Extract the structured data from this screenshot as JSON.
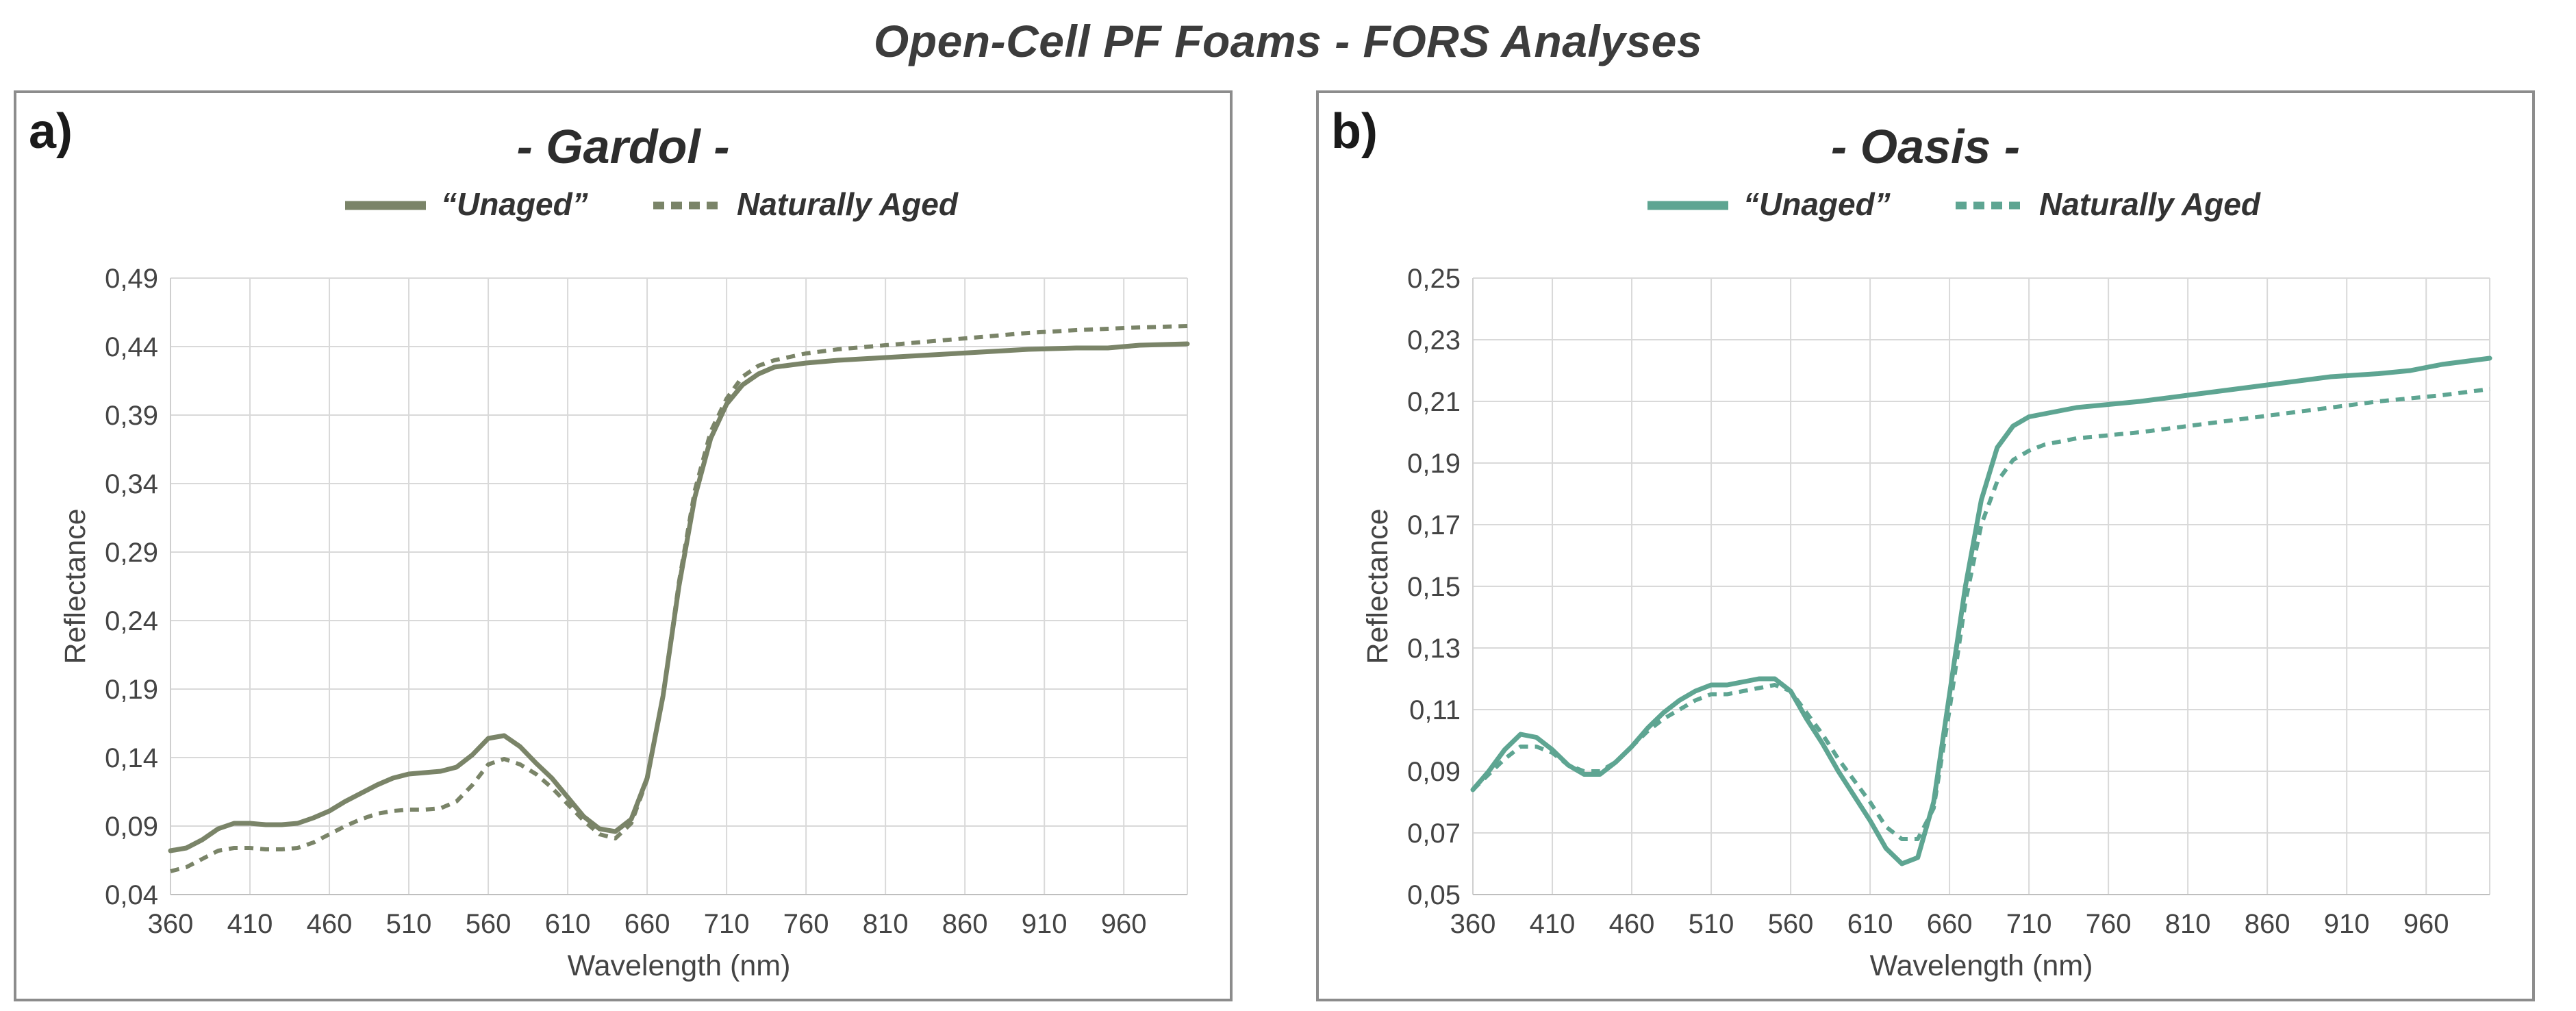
{
  "page_title": "Open-Cell PF Foams - FORS Analyses",
  "chart_data": [
    {
      "type": "line",
      "panel_label": "a)",
      "title": "- Gardol -",
      "xlabel": "Wavelength (nm)",
      "ylabel": "Reflectance",
      "xlim": [
        360,
        1000
      ],
      "ylim": [
        0.04,
        0.49
      ],
      "x_ticks": [
        "360",
        "410",
        "460",
        "510",
        "560",
        "610",
        "660",
        "710",
        "760",
        "810",
        "860",
        "910",
        "960"
      ],
      "y_ticks": [
        "0,04",
        "0,09",
        "0,14",
        "0,19",
        "0,24",
        "0,29",
        "0,34",
        "0,39",
        "0,44",
        "0,49"
      ],
      "grid": true,
      "legend_position": "top-center",
      "color": "#7a8468",
      "series": [
        {
          "name": "“Unaged”",
          "style": "solid",
          "x": [
            360,
            370,
            380,
            390,
            400,
            410,
            420,
            430,
            440,
            450,
            460,
            470,
            480,
            490,
            500,
            510,
            520,
            530,
            540,
            550,
            560,
            570,
            580,
            590,
            600,
            610,
            620,
            630,
            640,
            650,
            660,
            670,
            680,
            690,
            700,
            710,
            720,
            730,
            740,
            760,
            780,
            810,
            840,
            870,
            900,
            930,
            950,
            970,
            1000
          ],
          "y": [
            0.072,
            0.074,
            0.08,
            0.088,
            0.092,
            0.092,
            0.091,
            0.091,
            0.092,
            0.096,
            0.101,
            0.108,
            0.114,
            0.12,
            0.125,
            0.128,
            0.129,
            0.13,
            0.133,
            0.142,
            0.154,
            0.156,
            0.148,
            0.136,
            0.125,
            0.111,
            0.097,
            0.088,
            0.086,
            0.095,
            0.125,
            0.185,
            0.265,
            0.33,
            0.373,
            0.398,
            0.412,
            0.42,
            0.425,
            0.428,
            0.43,
            0.432,
            0.434,
            0.436,
            0.438,
            0.439,
            0.439,
            0.441,
            0.442
          ]
        },
        {
          "name": "Naturally Aged",
          "style": "dashed",
          "x": [
            360,
            370,
            380,
            390,
            400,
            410,
            420,
            430,
            440,
            450,
            460,
            470,
            480,
            490,
            500,
            510,
            520,
            530,
            540,
            550,
            560,
            570,
            580,
            590,
            600,
            610,
            620,
            630,
            640,
            650,
            660,
            670,
            680,
            690,
            700,
            710,
            720,
            730,
            740,
            760,
            780,
            810,
            840,
            870,
            900,
            930,
            950,
            970,
            1000
          ],
          "y": [
            0.057,
            0.06,
            0.066,
            0.072,
            0.074,
            0.074,
            0.073,
            0.073,
            0.074,
            0.078,
            0.084,
            0.09,
            0.095,
            0.099,
            0.101,
            0.102,
            0.102,
            0.103,
            0.108,
            0.12,
            0.135,
            0.139,
            0.135,
            0.128,
            0.118,
            0.106,
            0.094,
            0.084,
            0.081,
            0.092,
            0.124,
            0.185,
            0.268,
            0.335,
            0.378,
            0.402,
            0.418,
            0.426,
            0.43,
            0.435,
            0.438,
            0.441,
            0.444,
            0.447,
            0.45,
            0.452,
            0.453,
            0.454,
            0.455
          ]
        }
      ]
    },
    {
      "type": "line",
      "panel_label": "b)",
      "title": "- Oasis -",
      "xlabel": "Wavelength (nm)",
      "ylabel": "Reflectance",
      "xlim": [
        360,
        1000
      ],
      "ylim": [
        0.05,
        0.25
      ],
      "x_ticks": [
        "360",
        "410",
        "460",
        "510",
        "560",
        "610",
        "660",
        "710",
        "760",
        "810",
        "860",
        "910",
        "960"
      ],
      "y_ticks": [
        "0,05",
        "0,07",
        "0,09",
        "0,11",
        "0,13",
        "0,15",
        "0,17",
        "0,19",
        "0,21",
        "0,23",
        "0,25"
      ],
      "grid": true,
      "legend_position": "top-center",
      "color": "#5ea592",
      "series": [
        {
          "name": "“Unaged”",
          "style": "solid",
          "x": [
            360,
            370,
            380,
            390,
            400,
            410,
            420,
            430,
            440,
            450,
            460,
            470,
            480,
            490,
            500,
            510,
            520,
            530,
            540,
            550,
            560,
            570,
            580,
            590,
            600,
            610,
            620,
            630,
            640,
            650,
            660,
            670,
            680,
            690,
            700,
            710,
            720,
            730,
            740,
            760,
            780,
            810,
            840,
            870,
            900,
            930,
            950,
            970,
            1000
          ],
          "y": [
            0.084,
            0.09,
            0.097,
            0.102,
            0.101,
            0.097,
            0.092,
            0.089,
            0.089,
            0.093,
            0.098,
            0.104,
            0.109,
            0.113,
            0.116,
            0.118,
            0.118,
            0.119,
            0.12,
            0.12,
            0.116,
            0.107,
            0.099,
            0.09,
            0.082,
            0.074,
            0.065,
            0.06,
            0.062,
            0.08,
            0.115,
            0.15,
            0.178,
            0.195,
            0.202,
            0.205,
            0.206,
            0.207,
            0.208,
            0.209,
            0.21,
            0.212,
            0.214,
            0.216,
            0.218,
            0.219,
            0.22,
            0.222,
            0.224
          ]
        },
        {
          "name": "Naturally Aged",
          "style": "dashed",
          "x": [
            360,
            370,
            380,
            390,
            400,
            410,
            420,
            430,
            440,
            450,
            460,
            470,
            480,
            490,
            500,
            510,
            520,
            530,
            540,
            550,
            560,
            570,
            580,
            590,
            600,
            610,
            620,
            630,
            640,
            650,
            660,
            670,
            680,
            690,
            700,
            710,
            720,
            730,
            740,
            760,
            780,
            810,
            840,
            870,
            900,
            930,
            950,
            970,
            1000
          ],
          "y": [
            0.084,
            0.089,
            0.094,
            0.098,
            0.098,
            0.096,
            0.092,
            0.09,
            0.09,
            0.093,
            0.098,
            0.103,
            0.107,
            0.11,
            0.113,
            0.115,
            0.115,
            0.116,
            0.117,
            0.118,
            0.116,
            0.109,
            0.102,
            0.094,
            0.087,
            0.08,
            0.072,
            0.068,
            0.068,
            0.078,
            0.11,
            0.145,
            0.17,
            0.184,
            0.191,
            0.194,
            0.196,
            0.197,
            0.198,
            0.199,
            0.2,
            0.202,
            0.204,
            0.206,
            0.208,
            0.21,
            0.211,
            0.212,
            0.214
          ]
        }
      ]
    }
  ]
}
